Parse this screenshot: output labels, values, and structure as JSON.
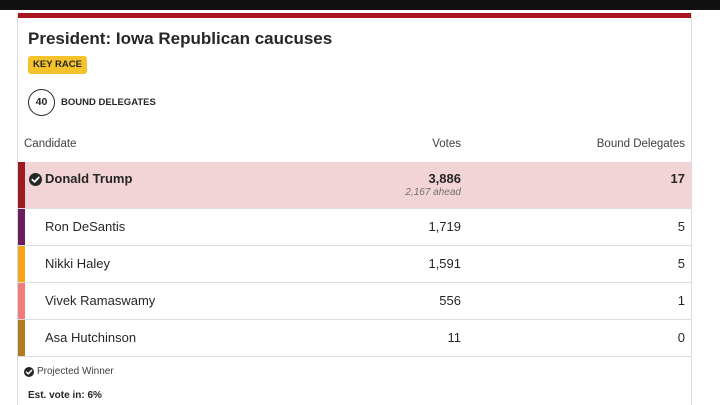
{
  "race": {
    "title": "President: Iowa Republican caucuses",
    "badge": "KEY RACE",
    "bound_delegates_total": "40",
    "bound_delegates_label": "BOUND DELEGATES"
  },
  "table": {
    "headers": {
      "candidate": "Candidate",
      "votes": "Votes",
      "delegates": "Bound Delegates"
    },
    "rows": [
      {
        "name": "Donald Trump",
        "votes": "3,886",
        "note": "2,167 ahead",
        "delegates": "17",
        "color": "#9b1b21",
        "winner": true
      },
      {
        "name": "Ron DeSantis",
        "votes": "1,719",
        "delegates": "5",
        "color": "#6a1e5c",
        "winner": false
      },
      {
        "name": "Nikki Haley",
        "votes": "1,591",
        "delegates": "5",
        "color": "#f2a51a",
        "winner": false
      },
      {
        "name": "Vivek Ramaswamy",
        "votes": "556",
        "delegates": "1",
        "color": "#f07c7c",
        "winner": false
      },
      {
        "name": "Asa Hutchinson",
        "votes": "11",
        "delegates": "0",
        "color": "#b07a1e",
        "winner": false
      }
    ]
  },
  "footer": {
    "legend_icon": "check-circle-icon",
    "legend_label": "Projected Winner",
    "est_vote": "Est. vote in: 6%"
  },
  "colors": {
    "accent": "#a8151f",
    "badge": "#f4c22b",
    "winner_row": "#f2d4d6"
  }
}
